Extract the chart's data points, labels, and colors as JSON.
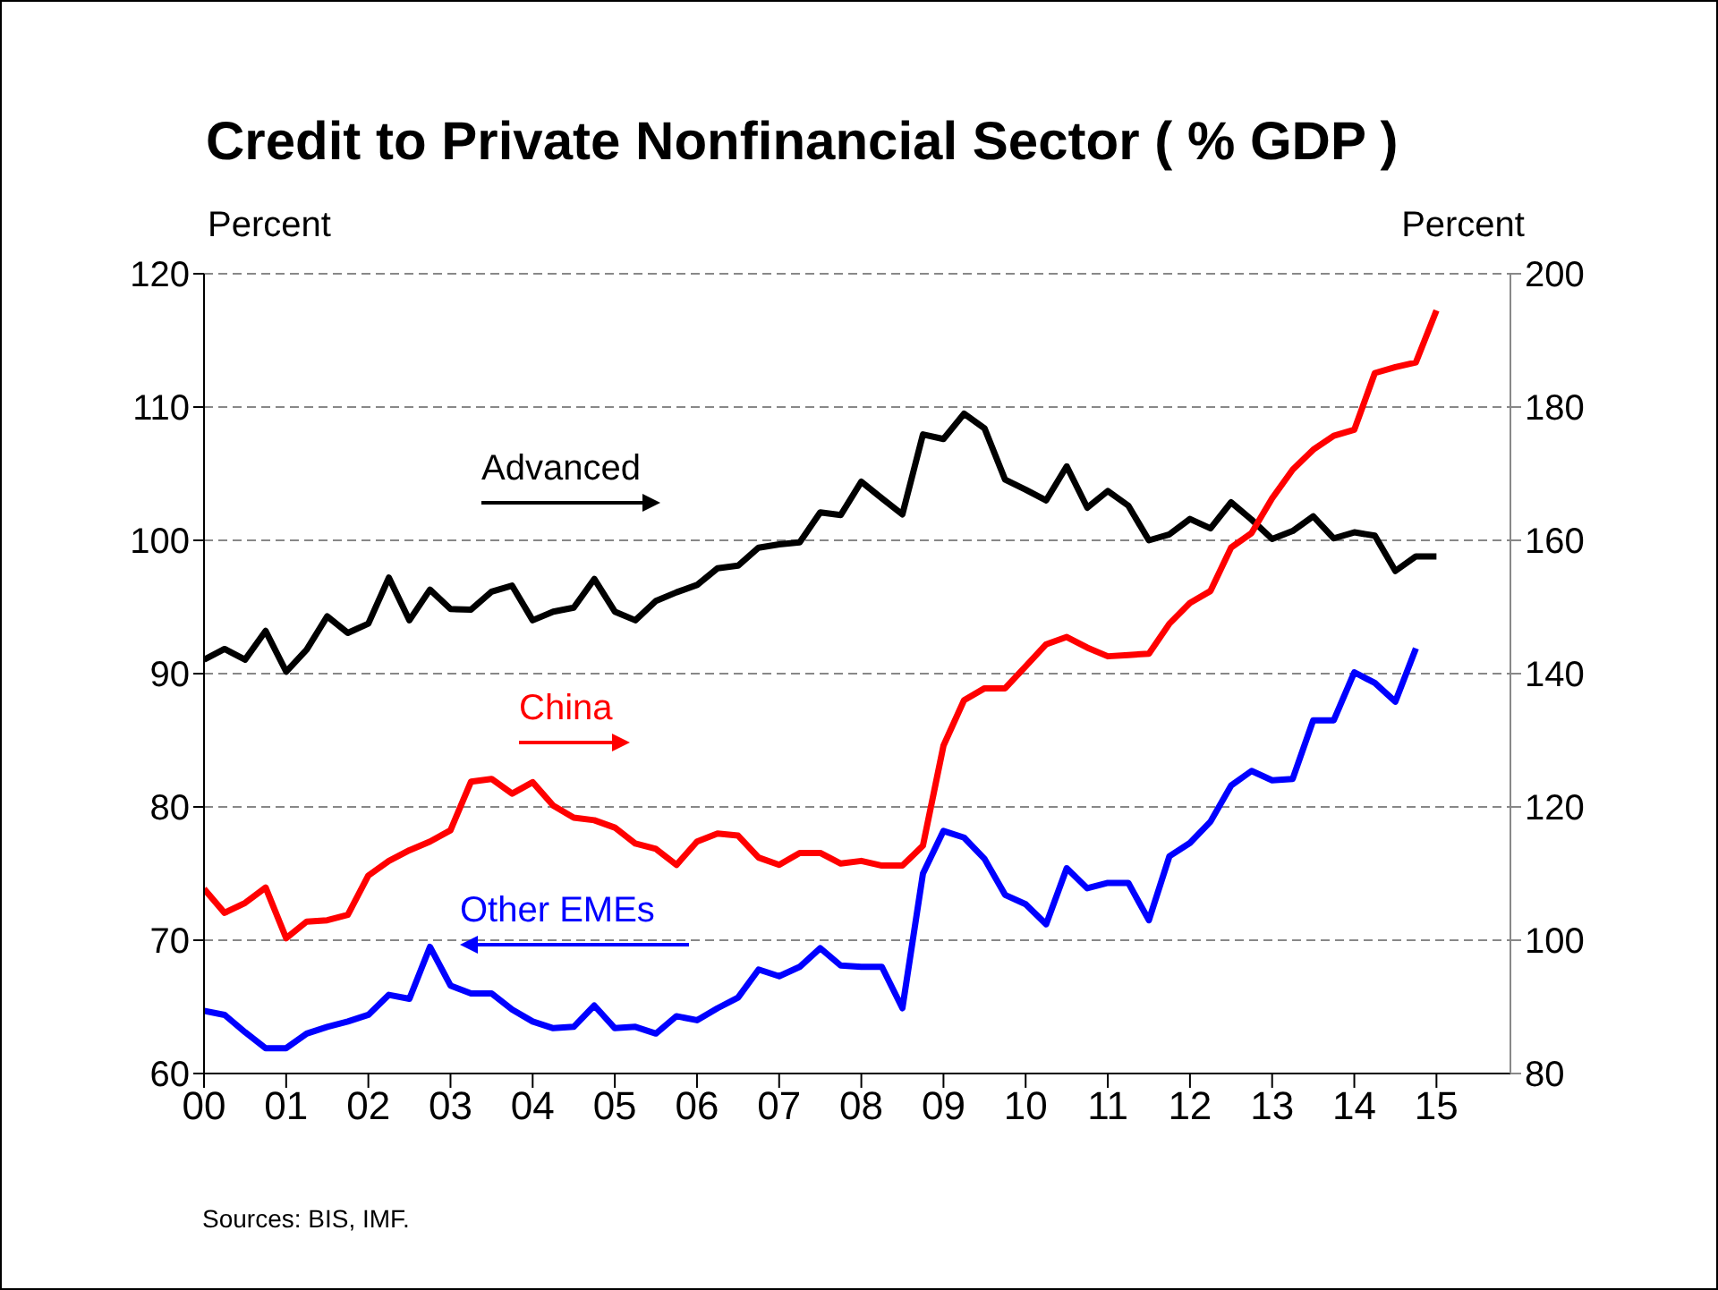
{
  "chart_data": {
    "type": "line",
    "title": "Credit to Private Nonfinancial Sector ( % GDP )",
    "ylabel": "Percent",
    "y2label": "Percent",
    "x": [
      2000,
      2000.25,
      2000.5,
      2000.75,
      2001,
      2001.25,
      2001.5,
      2001.75,
      2002,
      2002.25,
      2002.5,
      2002.75,
      2003,
      2003.25,
      2003.5,
      2003.75,
      2004,
      2004.25,
      2004.5,
      2004.75,
      2005,
      2005.25,
      2005.5,
      2005.75,
      2006,
      2006.25,
      2006.5,
      2006.75,
      2007,
      2007.25,
      2007.5,
      2007.75,
      2008,
      2008.25,
      2008.5,
      2008.75,
      2009,
      2009.25,
      2009.5,
      2009.75,
      2010,
      2010.25,
      2010.5,
      2010.75,
      2011,
      2011.25,
      2011.5,
      2011.75,
      2012,
      2012.25,
      2012.5,
      2012.75,
      2013,
      2013.25,
      2013.5,
      2013.75,
      2014,
      2014.25,
      2014.5,
      2014.75,
      2015
    ],
    "series": [
      {
        "name": "Advanced",
        "color": "#000000",
        "axis": "y2",
        "values": [
          142.1,
          143.7,
          142.1,
          146.4,
          140.3,
          143.6,
          148.6,
          146.1,
          147.5,
          154.4,
          148.0,
          152.6,
          149.7,
          149.6,
          152.3,
          153.2,
          148.0,
          149.3,
          149.9,
          154.2,
          149.3,
          148.0,
          150.9,
          152.2,
          153.3,
          155.8,
          156.2,
          158.9,
          159.4,
          159.7,
          164.2,
          163.8,
          168.8,
          166.3,
          163.9,
          175.9,
          175.2,
          179.0,
          176.8,
          169.1,
          167.6,
          166.0,
          171.1,
          164.9,
          167.4,
          165.2,
          160.0,
          160.9,
          163.2,
          161.8,
          165.7,
          163.1,
          160.2,
          161.4,
          163.6,
          160.3,
          161.2,
          160.7,
          155.4,
          157.6,
          157.6
        ]
      },
      {
        "name": "China",
        "color": "#ff0000",
        "axis": "y2",
        "values": [
          107.7,
          104.1,
          105.6,
          107.9,
          100.3,
          102.8,
          103.0,
          103.8,
          109.7,
          111.9,
          113.5,
          114.8,
          116.5,
          123.8,
          124.2,
          122.0,
          123.7,
          120.2,
          118.4,
          118.0,
          116.9,
          114.5,
          113.7,
          111.3,
          114.8,
          116.0,
          115.7,
          112.4,
          111.3,
          113.1,
          113.1,
          111.5,
          111.9,
          111.2,
          111.2,
          114.2,
          129.2,
          136.0,
          137.8,
          137.8,
          141.1,
          144.4,
          145.5,
          143.9,
          142.6,
          142.8,
          143.0,
          147.5,
          150.6,
          152.4,
          158.9,
          161.1,
          166.3,
          170.6,
          173.6,
          175.7,
          176.6,
          185.1,
          186.0,
          186.7,
          194.5
        ]
      },
      {
        "name": "Other EMEs",
        "color": "#0000ff",
        "x": [
          2000,
          2000.25,
          2000.5,
          2000.75,
          2001,
          2001.25,
          2001.5,
          2001.75,
          2002,
          2002.25,
          2002.5,
          2002.75,
          2003,
          2003.25,
          2003.5,
          2003.75,
          2004,
          2004.25,
          2004.5,
          2004.75,
          2005,
          2005.25,
          2005.5,
          2005.75,
          2006,
          2006.25,
          2006.5,
          2006.75,
          2007,
          2007.25,
          2007.5,
          2007.75,
          2008,
          2008.25,
          2008.5,
          2008.75,
          2009,
          2009.25,
          2009.5,
          2009.75,
          2010,
          2010.25,
          2010.5,
          2010.75,
          2011,
          2011.25,
          2011.5,
          2011.75,
          2012,
          2012.25,
          2012.5,
          2012.75,
          2013,
          2013.25,
          2013.5,
          2013.75,
          2014,
          2014.25,
          2014.5,
          2014.75
        ],
        "values": [
          64.7,
          64.4,
          63.1,
          61.9,
          61.9,
          63.0,
          63.5,
          63.9,
          64.4,
          65.9,
          65.6,
          69.5,
          66.6,
          66.0,
          66.0,
          64.8,
          63.9,
          63.4,
          63.5,
          65.1,
          63.4,
          63.5,
          63.0,
          64.3,
          64.0,
          64.9,
          65.7,
          67.8,
          67.3,
          68.0,
          69.4,
          68.1,
          68.0,
          68.0,
          64.9,
          75.0,
          78.2,
          77.7,
          76.1,
          73.4,
          72.7,
          71.2,
          75.4,
          73.9,
          74.3,
          74.3,
          71.5,
          76.3,
          77.3,
          78.9,
          81.6,
          82.7,
          82.0,
          82.1,
          86.5,
          86.5,
          90.1,
          89.3,
          87.9,
          91.9
        ]
      }
    ],
    "xlim": [
      2000,
      2015.9
    ],
    "xticks": [
      {
        "value": 2000,
        "label": "00"
      },
      {
        "value": 2001,
        "label": "01"
      },
      {
        "value": 2002,
        "label": "02"
      },
      {
        "value": 2003,
        "label": "03"
      },
      {
        "value": 2004,
        "label": "04"
      },
      {
        "value": 2005,
        "label": "05"
      },
      {
        "value": 2006,
        "label": "06"
      },
      {
        "value": 2007,
        "label": "07"
      },
      {
        "value": 2008,
        "label": "08"
      },
      {
        "value": 2009,
        "label": "09"
      },
      {
        "value": 2010,
        "label": "10"
      },
      {
        "value": 2011,
        "label": "11"
      },
      {
        "value": 2012,
        "label": "12"
      },
      {
        "value": 2013,
        "label": "13"
      },
      {
        "value": 2014,
        "label": "14"
      },
      {
        "value": 2015,
        "label": "15"
      }
    ],
    "ylim": [
      60,
      120
    ],
    "yticks": [
      60,
      70,
      80,
      90,
      100,
      110,
      120
    ],
    "y2lim": [
      80,
      200
    ],
    "y2ticks": [
      80,
      100,
      120,
      140,
      160,
      180,
      200
    ],
    "grid": "y",
    "annotations": [
      "Sources:  BIS, IMF."
    ]
  }
}
